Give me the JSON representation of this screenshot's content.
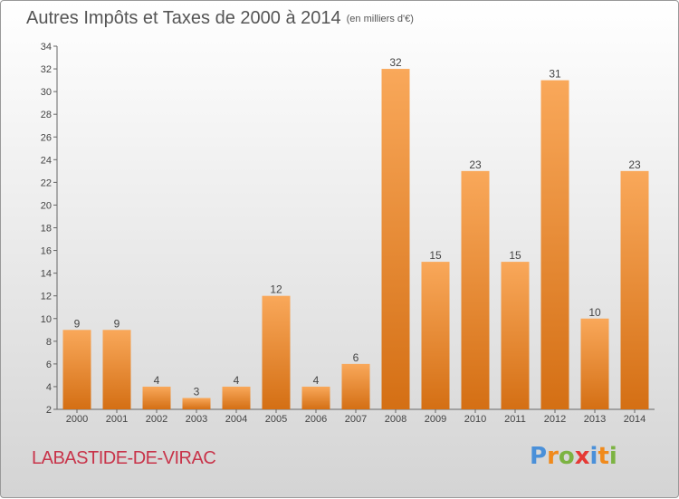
{
  "title": {
    "main": "Autres Impôts et Taxes de 2000 à 2014",
    "unit": "(en milliers d'€)"
  },
  "commune": "LABASTIDE-DE-VIRAC",
  "logo": {
    "text": "Proxiti",
    "letters": [
      {
        "ch": "P",
        "color": "#4a90d9"
      },
      {
        "ch": "r",
        "color": "#f08a1c"
      },
      {
        "ch": "o",
        "color": "#7cb342"
      },
      {
        "ch": "x",
        "color": "#e53935"
      },
      {
        "ch": "i",
        "color": "#4a90d9"
      },
      {
        "ch": "t",
        "color": "#f08a1c"
      },
      {
        "ch": "i",
        "color": "#7cb342"
      }
    ]
  },
  "colors": {
    "bar_light": "#f9a85a",
    "bar_dark": "#d46f14",
    "axis": "#666666",
    "grid": "#cccccc",
    "commune": "#c8344a"
  },
  "chart_data": {
    "type": "bar",
    "categories": [
      "2000",
      "2001",
      "2002",
      "2003",
      "2004",
      "2005",
      "2006",
      "2007",
      "2008",
      "2009",
      "2010",
      "2011",
      "2012",
      "2013",
      "2014"
    ],
    "values": [
      9,
      9,
      4,
      3,
      4,
      12,
      4,
      6,
      32,
      15,
      23,
      15,
      31,
      10,
      23
    ],
    "ylim": [
      2,
      34
    ],
    "yticks": [
      2,
      4,
      6,
      8,
      10,
      12,
      14,
      16,
      18,
      20,
      22,
      24,
      26,
      28,
      30,
      32,
      34
    ],
    "xlabel": "",
    "ylabel": "",
    "grid": false,
    "data_labels": true
  }
}
